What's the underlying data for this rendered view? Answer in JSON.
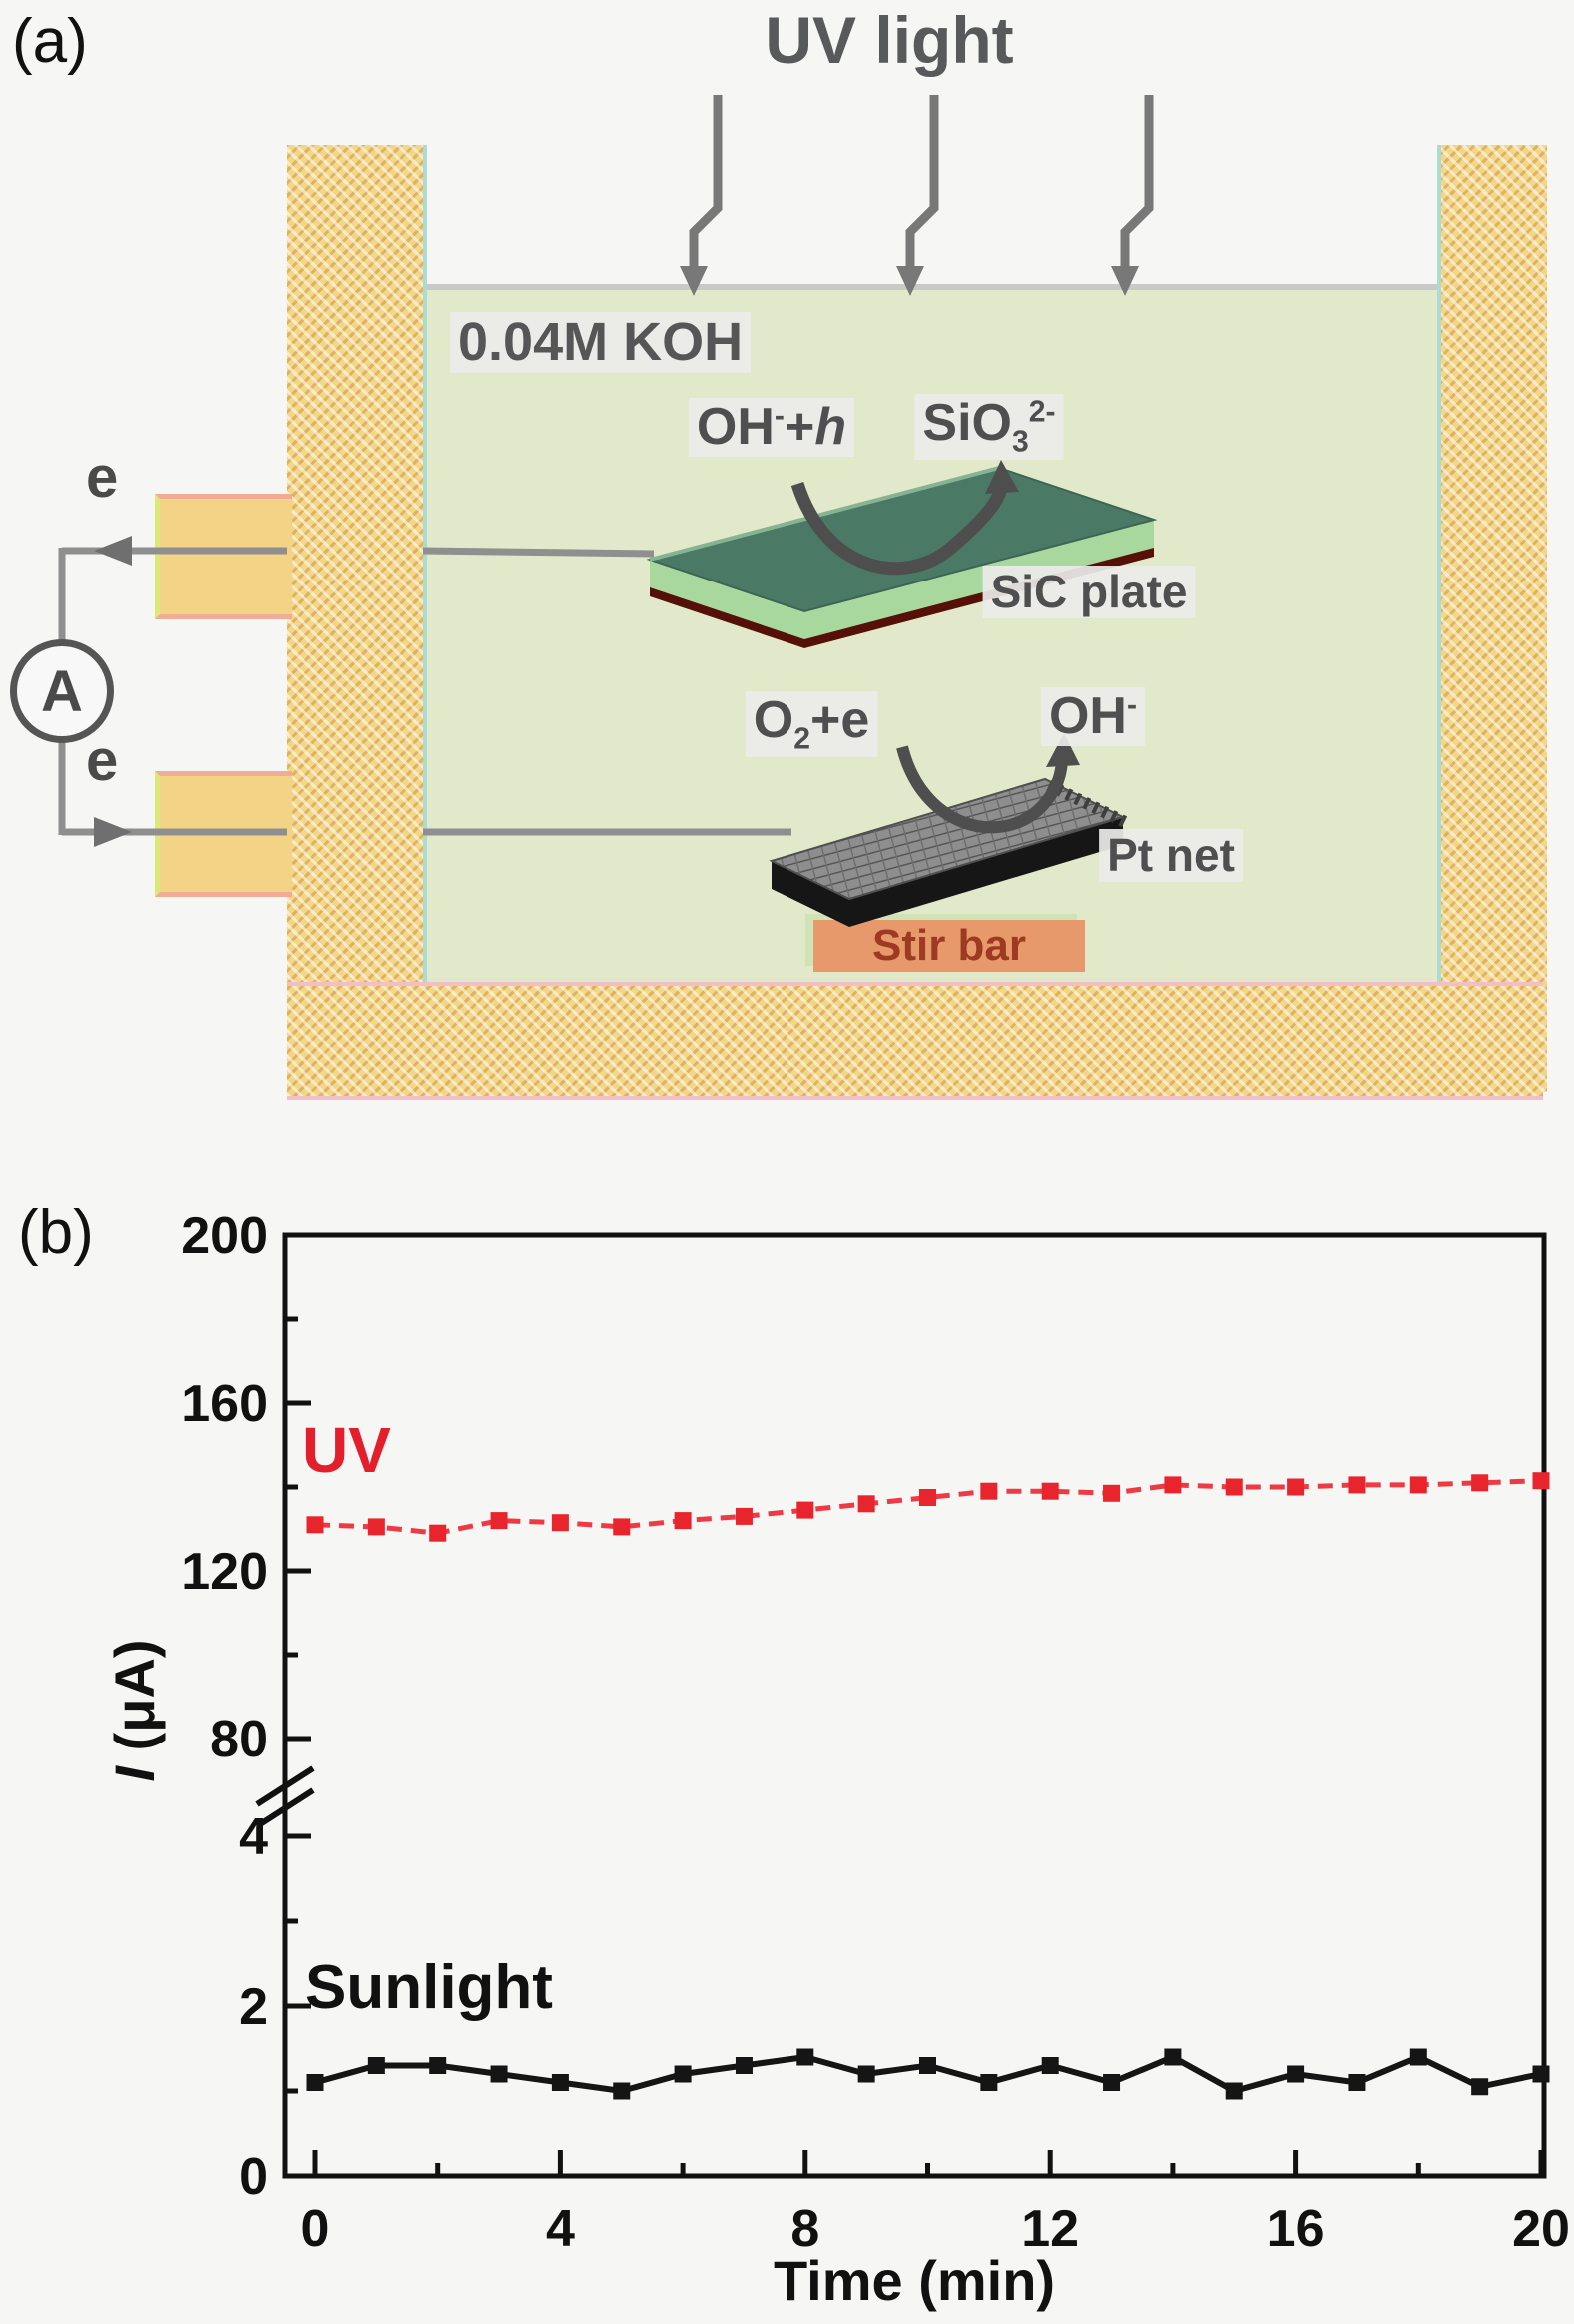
{
  "panel_a": {
    "label": "(a)",
    "title": "UV light",
    "solution_label": "0.04M KOH",
    "anode_reactant": {
      "base": "OH",
      "sup": "-",
      "plus": "+",
      "h": "h"
    },
    "anode_product": {
      "base": "SiO",
      "sub": "3",
      "sup": "2-"
    },
    "cathode_reactant": {
      "base": "O",
      "sub": "2",
      "rest": "+e"
    },
    "cathode_product": {
      "base": "OH",
      "sup": "-"
    },
    "sic_plate_label": "SiC plate",
    "pt_net_label": "Pt net",
    "stir_bar_label": "Stir bar",
    "electron_top": "e",
    "electron_bottom": "e",
    "ammeter_label": "A",
    "colors": {
      "wall": "#f4d689",
      "solution": "#e2e9cb",
      "sic_plate_top": "#4a7a66",
      "sic_plate_side": "#a9d89e",
      "pt_net": "#8e8e8e",
      "stir_bar": "#e8996c",
      "wire": "#8f8f8f"
    }
  },
  "panel_b": {
    "label": "(b)",
    "ylabel_italic": "I",
    "ylabel_rest": " (μA)"
  },
  "chart_data": {
    "type": "line",
    "title": "",
    "xlabel": "Time (min)",
    "ylabel": "I (μA)",
    "x": [
      0,
      1,
      2,
      3,
      4,
      5,
      6,
      7,
      8,
      9,
      10,
      11,
      12,
      13,
      14,
      15,
      16,
      17,
      18,
      19,
      20
    ],
    "series": [
      {
        "name": "UV",
        "color": "#e8252d",
        "line_color": "#ee3a45",
        "marker": "square",
        "line_style": "dashed",
        "axis_section": "upper",
        "values": [
          131,
          130.5,
          129,
          132,
          131.5,
          130.5,
          132,
          133,
          134.5,
          136,
          137.5,
          139,
          139,
          138.5,
          140.5,
          140,
          140,
          140.5,
          140.5,
          141,
          141.5
        ]
      },
      {
        "name": "Sunlight",
        "color": "#151515",
        "line_color": "#151515",
        "marker": "square",
        "line_style": "solid",
        "axis_section": "lower",
        "values": [
          1.1,
          1.3,
          1.3,
          1.2,
          1.1,
          1.0,
          1.2,
          1.3,
          1.4,
          1.2,
          1.3,
          1.1,
          1.3,
          1.1,
          1.4,
          1.0,
          1.2,
          1.1,
          1.4,
          1.05,
          1.2
        ]
      }
    ],
    "x_ticks": [
      0,
      4,
      8,
      12,
      16,
      20
    ],
    "x_minor_ticks": [
      2,
      6,
      10,
      14,
      18
    ],
    "y_axis": {
      "broken": true,
      "upper": {
        "range": [
          80,
          200
        ],
        "ticks": [
          200,
          160,
          120,
          80
        ],
        "minor_ticks": [
          180,
          140,
          100
        ]
      },
      "lower": {
        "range": [
          0,
          4
        ],
        "ticks": [
          4,
          2,
          0
        ],
        "minor_ticks": [
          3,
          1
        ]
      }
    },
    "xlim": [
      0,
      20
    ],
    "grid": false,
    "legend_position": "inline-annotations"
  }
}
